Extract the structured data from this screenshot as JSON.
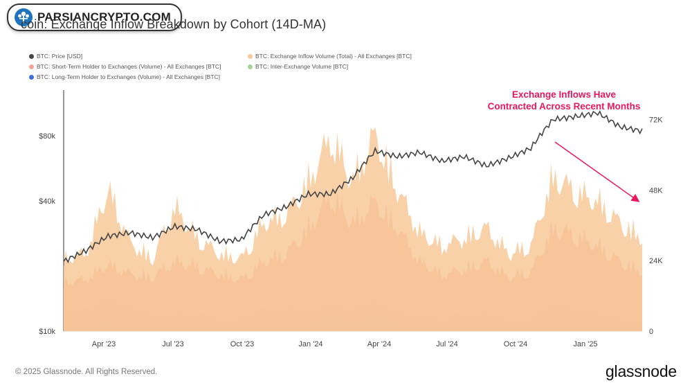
{
  "watermark": {
    "text": "PARSIANCRYPTO.COM"
  },
  "footer": {
    "copyright": "© 2025 Glassnode. All Rights Reserved.",
    "brand": "glassnode"
  },
  "annotation": {
    "line1": "Exchange Inflows Have",
    "line2": "Contracted Across Recent Months"
  },
  "colors": {
    "price": "#444444",
    "total": "#f8c99a",
    "sth": "#f4a593",
    "inter": "#a7cf9a",
    "lth": "#3a6fe0",
    "annotation": "#e8185a"
  },
  "chart_data": {
    "type": "area",
    "title": "Bitcoin: Exchange Inflow Breakdown by Cohort (14D-MA)",
    "title_visible": "coin: Exchange Inflow Breakdown by Cohort (14D-MA)",
    "x_ticks": [
      "Apr '23",
      "Jul '23",
      "Oct '23",
      "Jan '24",
      "Apr '24",
      "Jul '24",
      "Oct '24",
      "Jan '25"
    ],
    "y_left": {
      "scale": "log",
      "ticks": [
        "$10k",
        "$40k",
        "$80k"
      ],
      "range": [
        10000,
        130000
      ]
    },
    "y_right": {
      "scale": "linear",
      "ticks": [
        "0",
        "24K",
        "48K",
        "72K"
      ],
      "range": [
        0,
        82000
      ]
    },
    "legend_placement": "top-left",
    "series": [
      {
        "name": "BTC: Price [USD]",
        "color": "#444444",
        "axis": "left",
        "months": [
          "2023-01",
          "2023-02",
          "2023-03",
          "2023-04",
          "2023-05",
          "2023-06",
          "2023-07",
          "2023-08",
          "2023-09",
          "2023-10",
          "2023-11",
          "2023-12",
          "2024-01",
          "2024-02",
          "2024-03",
          "2024-04",
          "2024-05",
          "2024-06",
          "2024-07",
          "2024-08",
          "2024-09",
          "2024-10",
          "2024-11",
          "2024-12",
          "2025-01",
          "2025-02",
          "2025-03"
        ],
        "values": [
          21000,
          23500,
          27500,
          28500,
          27000,
          30500,
          29500,
          26000,
          26500,
          34500,
          37500,
          43000,
          43000,
          51000,
          68000,
          64000,
          67000,
          61000,
          64000,
          58000,
          63000,
          70000,
          95000,
          98000,
          102000,
          88000,
          84000
        ]
      },
      {
        "name": "BTC: Exchange Inflow Volume (Total) - All Exchanges [BTC]",
        "color": "#f8c99a",
        "axis": "right",
        "values": [
          28000,
          30000,
          55000,
          34000,
          28000,
          48000,
          36000,
          30000,
          28000,
          42000,
          45000,
          58000,
          75000,
          58000,
          76000,
          55000,
          38000,
          33000,
          36000,
          40000,
          30000,
          33000,
          60000,
          54000,
          50000,
          42000,
          36000
        ]
      },
      {
        "name": "BTC: Short-Term Holder to Exchanges (Volume) - All Exchanges [BTC]",
        "color": "#f4a593",
        "axis": "right",
        "values": [
          19000,
          20000,
          26000,
          22000,
          21000,
          27000,
          25000,
          22000,
          20000,
          27000,
          30000,
          40000,
          52000,
          42000,
          50000,
          40000,
          27000,
          22000,
          24000,
          27000,
          21000,
          23000,
          40000,
          37000,
          33000,
          27000,
          23000
        ]
      },
      {
        "name": "BTC: Inter-Exchange Volume [BTC]",
        "color": "#a7cf9a",
        "axis": "right",
        "values": [
          8500,
          9500,
          14500,
          10000,
          7500,
          8000,
          8000,
          6000,
          5500,
          9500,
          10500,
          9000,
          12500,
          10000,
          12500,
          9000,
          6500,
          6000,
          7000,
          8000,
          5500,
          6000,
          12000,
          10000,
          8000,
          6000,
          5500
        ]
      },
      {
        "name": "BTC: Long-Term Holder to Exchanges (Volume) - All Exchanges [BTC]",
        "color": "#3a6fe0",
        "axis": "right",
        "values": [
          1500,
          2000,
          4000,
          1500,
          1200,
          1000,
          1500,
          1000,
          1000,
          1500,
          2000,
          3000,
          8000,
          5000,
          7000,
          4000,
          2000,
          1500,
          2500,
          3500,
          1500,
          1500,
          3500,
          3000,
          2500,
          1800,
          1500
        ]
      }
    ]
  }
}
